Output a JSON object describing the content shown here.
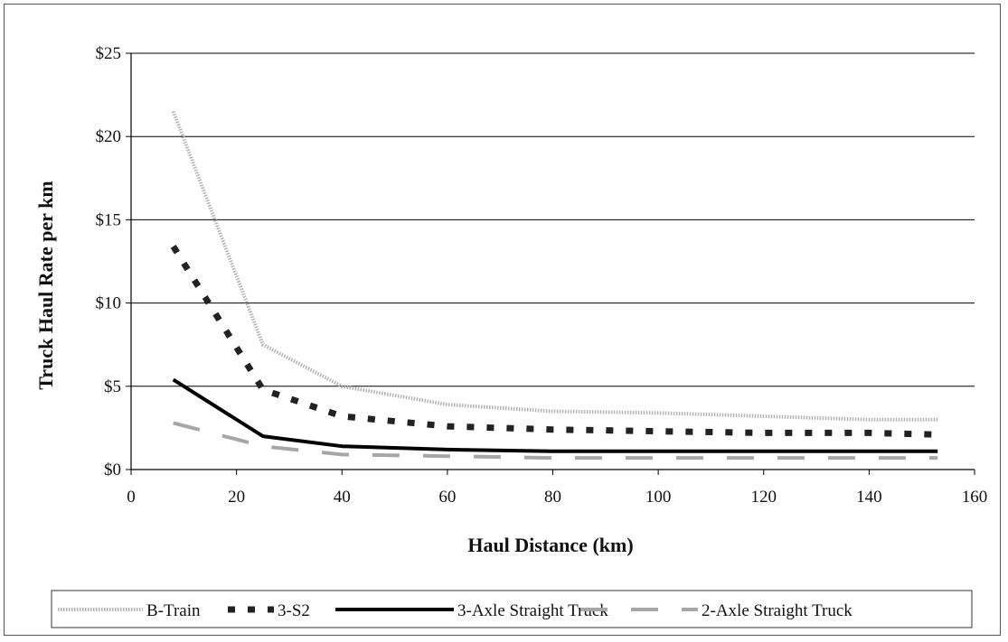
{
  "chart_data": {
    "type": "line",
    "title": "",
    "xlabel": "Haul Distance (km)",
    "ylabel": "Truck Haul Rate per km",
    "xlim": [
      0,
      160
    ],
    "ylim": [
      0,
      25
    ],
    "x_ticks": [
      "0",
      "20",
      "40",
      "60",
      "80",
      "100",
      "120",
      "140",
      "160"
    ],
    "y_ticks": [
      "$0",
      "$5",
      "$10",
      "$15",
      "$20",
      "$25"
    ],
    "grid": "horizontal",
    "legend_position": "bottom",
    "series": [
      {
        "name": "B-Train",
        "color": "#b3b3b3",
        "style": "dotted-gray",
        "x": [
          8,
          25,
          40,
          60,
          80,
          100,
          120,
          140,
          153
        ],
        "values": [
          21.5,
          7.5,
          5.0,
          3.9,
          3.5,
          3.4,
          3.2,
          3.0,
          3.0
        ]
      },
      {
        "name": "3-S2",
        "color": "#222222",
        "style": "dashed",
        "x": [
          8,
          25,
          40,
          60,
          80,
          100,
          120,
          140,
          153
        ],
        "values": [
          13.4,
          4.8,
          3.2,
          2.6,
          2.4,
          2.3,
          2.2,
          2.2,
          2.1
        ]
      },
      {
        "name": "3-Axle Straight Truck",
        "color": "#000000",
        "style": "solid",
        "x": [
          8,
          25,
          40,
          60,
          80,
          100,
          120,
          140,
          153
        ],
        "values": [
          5.4,
          2.0,
          1.4,
          1.2,
          1.1,
          1.1,
          1.1,
          1.1,
          1.1
        ]
      },
      {
        "name": "2-Axle Straight Truck",
        "color": "#a6a6a6",
        "style": "long-dash",
        "x": [
          8,
          25,
          40,
          60,
          80,
          100,
          120,
          140,
          153
        ],
        "values": [
          2.8,
          1.4,
          0.9,
          0.8,
          0.7,
          0.7,
          0.7,
          0.7,
          0.7
        ]
      }
    ]
  }
}
